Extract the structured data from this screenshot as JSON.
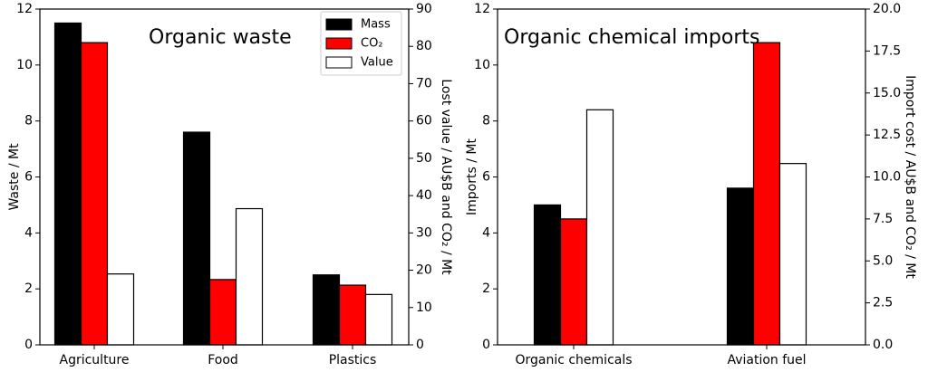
{
  "chart_data": [
    {
      "type": "bar",
      "title": "Organic waste",
      "categories": [
        "Agriculture",
        "Food",
        "Plastics"
      ],
      "ylabel": "Waste / Mt",
      "ylim": [
        0,
        12
      ],
      "yticks": [
        0,
        2,
        4,
        6,
        8,
        10,
        12
      ],
      "y2label": "Lost value / AU$B and CO₂ / Mt",
      "y2lim": [
        0,
        90
      ],
      "y2ticks": [
        0,
        10,
        20,
        30,
        40,
        50,
        60,
        70,
        80,
        90
      ],
      "legend_position": "top-right",
      "series": [
        {
          "name": "Mass",
          "axis": "left",
          "color": "#000000",
          "values": [
            11.5,
            7.6,
            2.5
          ]
        },
        {
          "name": "CO₂",
          "axis": "right",
          "color": "#ff0000",
          "values": [
            81,
            17.5,
            16
          ]
        },
        {
          "name": "Value",
          "axis": "right",
          "color": "#ffffff",
          "values": [
            19,
            36.5,
            13.5
          ]
        }
      ]
    },
    {
      "type": "bar",
      "title": "Organic chemical imports",
      "categories": [
        "Organic chemicals",
        "Aviation fuel"
      ],
      "ylabel": "Imports / Mt",
      "ylim": [
        0,
        12
      ],
      "yticks": [
        0,
        2,
        4,
        6,
        8,
        10,
        12
      ],
      "y2label": "Import cost / AU$B and CO₂ / Mt",
      "y2lim": [
        0,
        20
      ],
      "y2ticks": [
        "0.0",
        "2.5",
        "5.0",
        "7.5",
        "10.0",
        "12.5",
        "15.0",
        "17.5",
        "20.0"
      ],
      "series": [
        {
          "axis": "left",
          "color": "#000000",
          "values": [
            5.0,
            5.6
          ]
        },
        {
          "axis": "right",
          "color": "#ff0000",
          "values": [
            7.5,
            18.0
          ]
        },
        {
          "axis": "right",
          "color": "#ffffff",
          "values": [
            14.0,
            10.8
          ]
        }
      ]
    }
  ]
}
